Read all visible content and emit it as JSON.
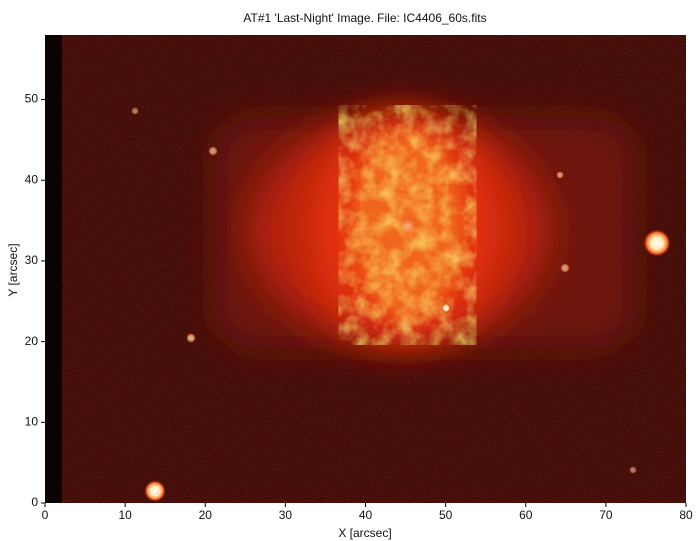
{
  "chart_data": {
    "type": "image",
    "title": "AT#1 'Last-Night' Image. File: IC4406_60s.fits",
    "xlabel": "X [arcsec]",
    "ylabel": "Y [arcsec]",
    "xlim": [
      0,
      80
    ],
    "ylim": [
      0,
      58
    ],
    "xticks": [
      0,
      10,
      20,
      30,
      40,
      50,
      60,
      70,
      80
    ],
    "yticks": [
      0,
      10,
      20,
      30,
      40,
      50
    ]
  }
}
